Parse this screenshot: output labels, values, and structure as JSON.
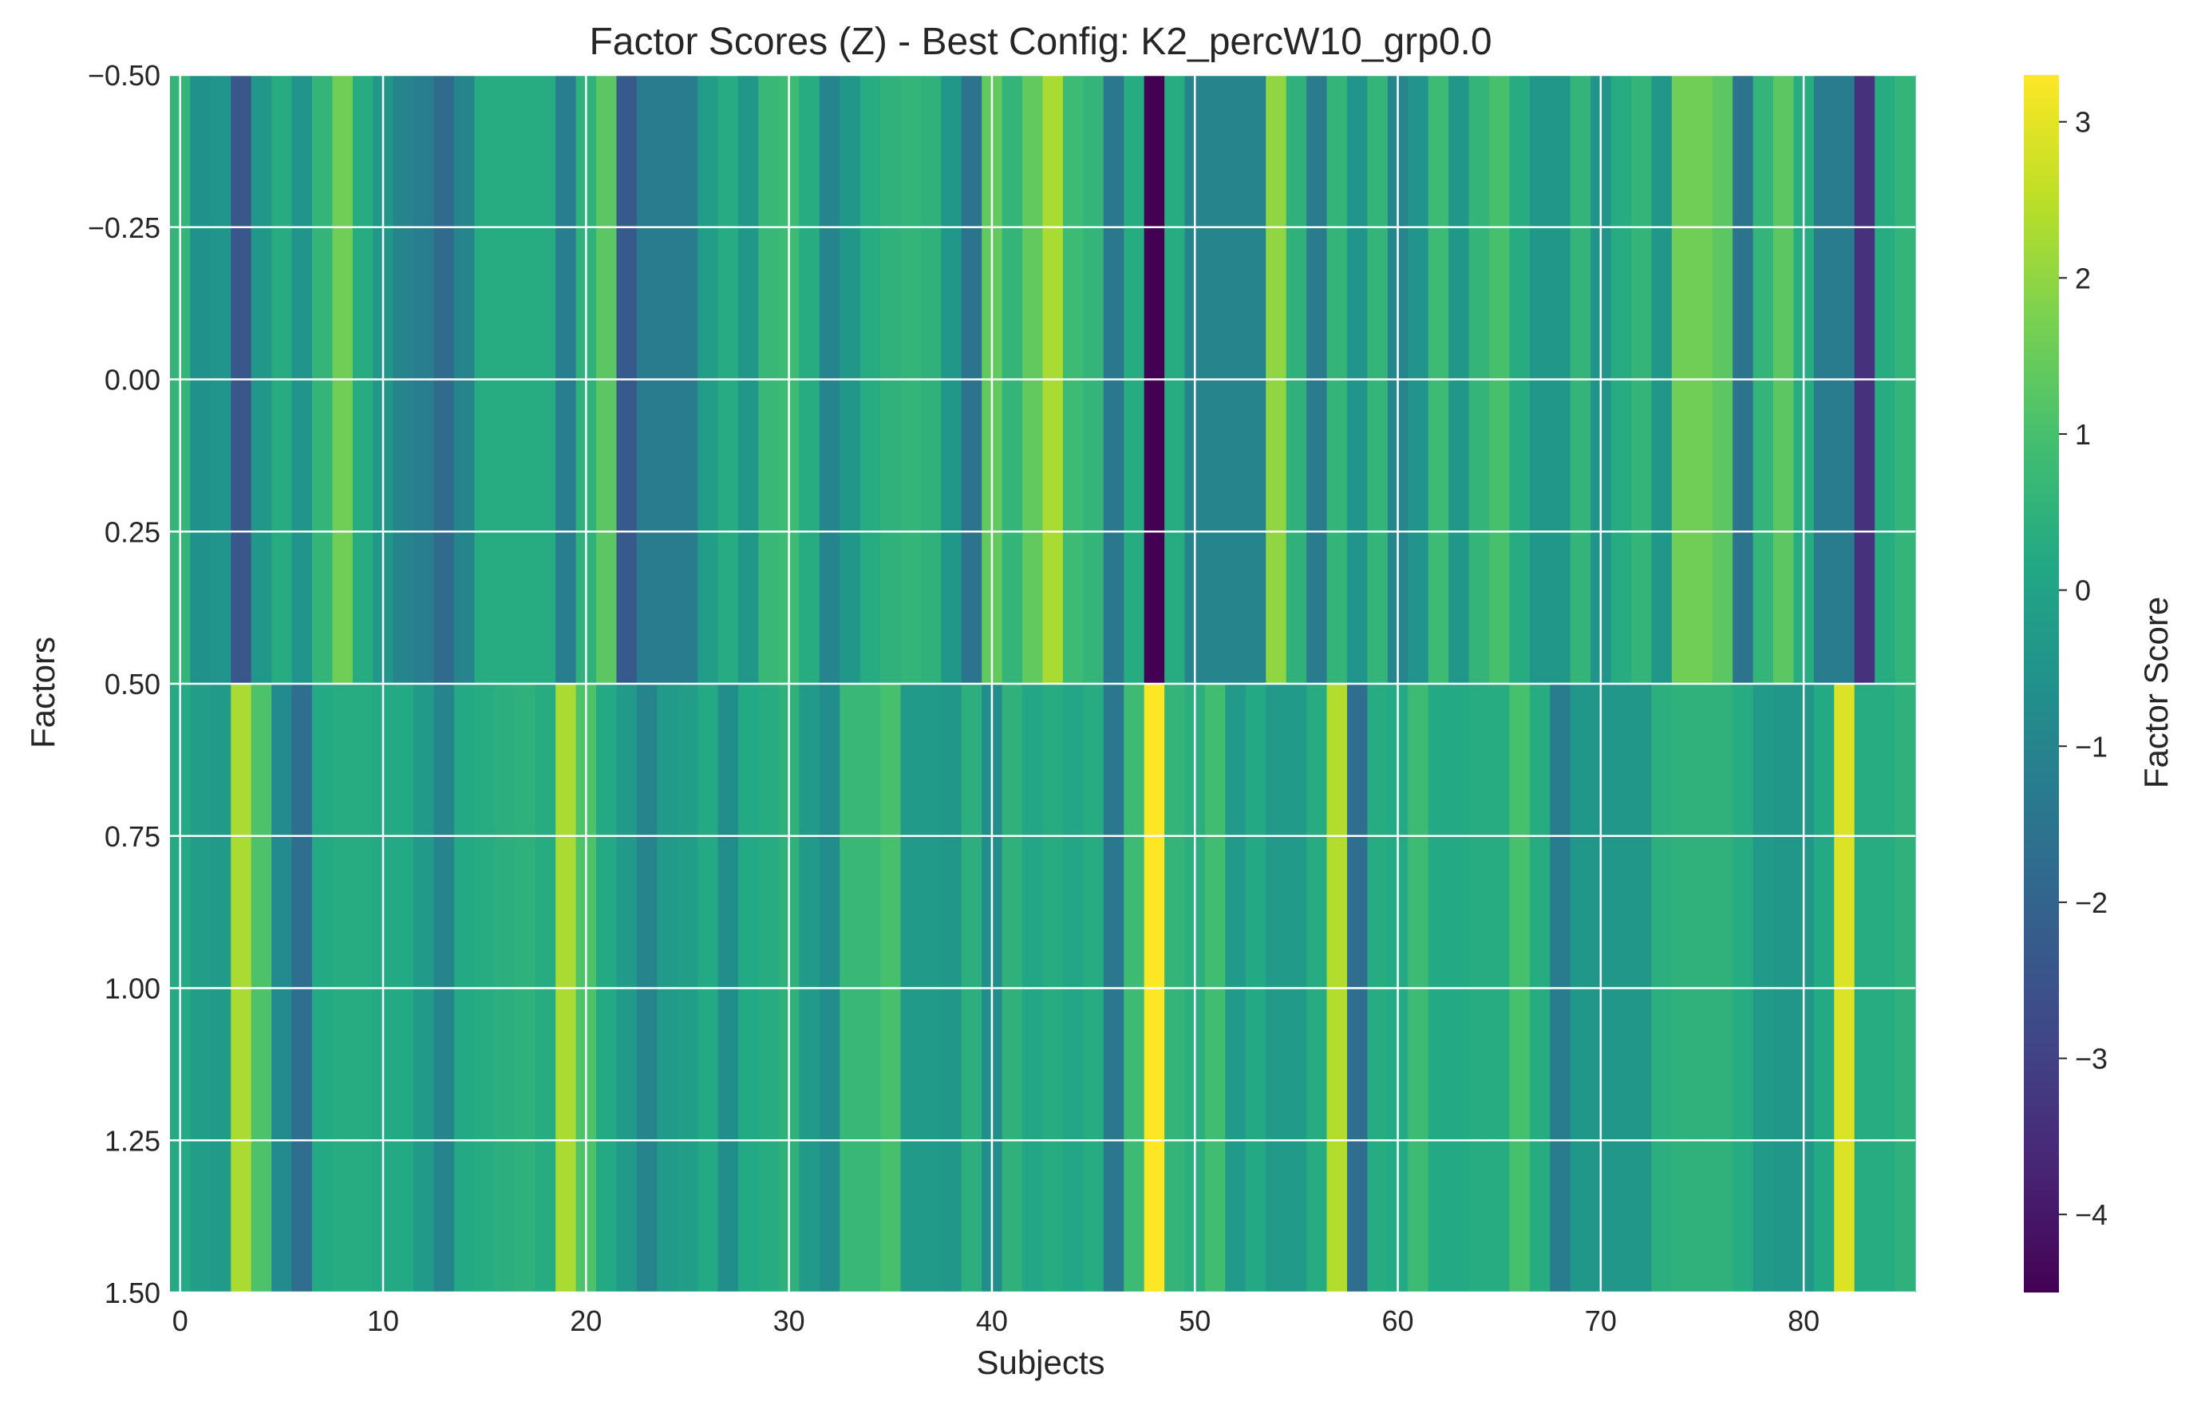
{
  "chart_data": {
    "type": "heatmap",
    "title": "Factor Scores (Z) - Best Config: K2_percW10_grp0.0",
    "xlabel": "Subjects",
    "ylabel": "Factors",
    "colormap": "viridis",
    "colorbar_label": "Factor Score",
    "colorbar_range": [
      -4.5,
      3.3
    ],
    "colorbar_ticks": [
      3,
      2,
      1,
      0,
      -1,
      -2,
      -3,
      -4
    ],
    "colorbar_tick_labels": [
      "3",
      "2",
      "1",
      "0",
      "−1",
      "−2",
      "−3",
      "−4"
    ],
    "x_range": [
      -0.5,
      85.5
    ],
    "y_range": [
      -0.5,
      1.5
    ],
    "x_ticks": [
      0,
      10,
      20,
      30,
      40,
      50,
      60,
      70,
      80
    ],
    "x_tick_labels": [
      "0",
      "10",
      "20",
      "30",
      "40",
      "50",
      "60",
      "70",
      "80"
    ],
    "y_ticks": [
      -0.5,
      -0.25,
      0.0,
      0.25,
      0.5,
      0.75,
      1.0,
      1.25,
      1.5
    ],
    "y_tick_labels": [
      "−0.50",
      "−0.25",
      "0.00",
      "0.25",
      "0.50",
      "0.75",
      "1.00",
      "1.25",
      "1.50"
    ],
    "grid": true,
    "rows": [
      {
        "factor": 0,
        "values": [
          0.6,
          -0.6,
          -0.5,
          -2.4,
          -0.4,
          0.3,
          -0.5,
          0.6,
          1.6,
          0.3,
          -0.4,
          -1.0,
          -1.2,
          -1.8,
          -1.0,
          0.3,
          0.3,
          0.3,
          0.3,
          -1.2,
          0.5,
          1.3,
          -2.3,
          -1.3,
          -1.3,
          -1.3,
          -0.2,
          0.3,
          -0.4,
          0.7,
          0.8,
          0.3,
          -1.0,
          -0.4,
          0.3,
          0.5,
          0.6,
          0.5,
          -0.4,
          -1.5,
          1.4,
          0.6,
          1.4,
          2.3,
          0.8,
          0.6,
          -1.4,
          0.3,
          -4.5,
          0.3,
          -1.0,
          -1.0,
          -1.0,
          -1.0,
          2.0,
          0.5,
          -1.3,
          0.6,
          -0.5,
          0.6,
          -1.0,
          -0.5,
          0.8,
          -0.4,
          0.6,
          1.0,
          0.3,
          -0.4,
          -0.4,
          0.6,
          -0.5,
          0.3,
          0.6,
          -0.4,
          1.6,
          1.6,
          1.3,
          -1.5,
          0.6,
          1.3,
          0.3,
          -1.3,
          -1.3,
          -3.4,
          0.3,
          0.6
        ]
      },
      {
        "factor": 1,
        "values": [
          0.2,
          -0.2,
          -0.3,
          2.3,
          1.1,
          -0.8,
          -1.7,
          0.2,
          0.3,
          0.3,
          0.2,
          0.2,
          -0.3,
          -1.0,
          0.2,
          0.3,
          0.4,
          0.5,
          0.3,
          2.3,
          1.1,
          0.2,
          -0.3,
          -1.0,
          -0.3,
          -0.2,
          0.2,
          -0.7,
          0.2,
          0.3,
          0.5,
          -0.3,
          -0.7,
          0.7,
          0.7,
          1.0,
          -0.3,
          -0.3,
          -0.4,
          0.4,
          -0.7,
          0.5,
          0.1,
          0.3,
          0.1,
          0.3,
          -1.4,
          0.8,
          3.3,
          0.6,
          0.4,
          0.9,
          -0.3,
          0.2,
          -0.3,
          -0.3,
          0.3,
          2.4,
          -1.7,
          0.3,
          0.2,
          0.8,
          0.2,
          0.2,
          0.3,
          0.3,
          1.0,
          0.3,
          -1.3,
          -0.4,
          -0.4,
          -0.4,
          -0.4,
          0.4,
          0.5,
          0.5,
          0.5,
          0.3,
          -0.3,
          -0.4,
          -0.4,
          0.2,
          2.9,
          0.3,
          0.3,
          0.5
        ]
      }
    ]
  }
}
